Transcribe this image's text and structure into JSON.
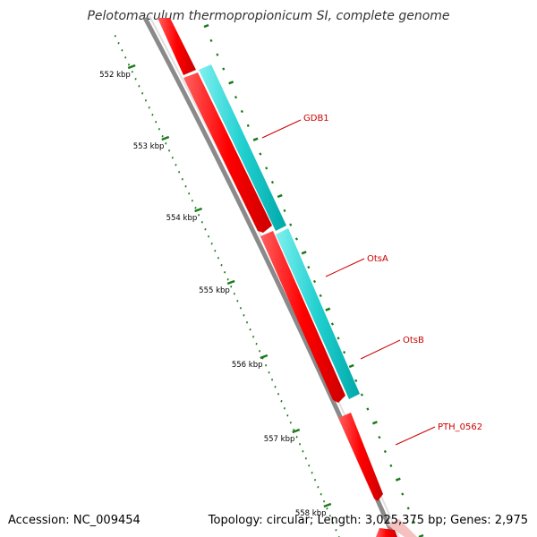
{
  "title": "Pelotomaculum thermopropionicum SI, complete genome",
  "footer": {
    "accession_label": "Accession:",
    "accession": "NC_009454",
    "topology_label": "Topology:",
    "topology": "circular",
    "length_label": "Length:",
    "length": "3,025,375 bp",
    "genes_label": "Genes:",
    "genes": "2,975"
  },
  "ticks": [
    {
      "label": "552 kbp"
    },
    {
      "label": "553 kbp"
    },
    {
      "label": "554 kbp"
    },
    {
      "label": "555 kbp"
    },
    {
      "label": "556 kbp"
    },
    {
      "label": "557 kbp"
    },
    {
      "label": "558 kbp"
    }
  ],
  "genes": [
    {
      "label": "GDB1",
      "color": "#00cccc",
      "track": "outer"
    },
    {
      "label": "OtsA",
      "color": "#ee0000",
      "track": "inner"
    },
    {
      "label": "OtsB",
      "color": "#00cccc",
      "track": "outer"
    },
    {
      "label": "PTH_0562",
      "color": "#ee0000",
      "track": "outer"
    }
  ],
  "colors": {
    "backbone": "#808080",
    "forward_gene": "#00cccc",
    "reverse_gene": "#ee0000",
    "tick_marks": "#1a7a1a",
    "label_color": "#cc0000"
  }
}
